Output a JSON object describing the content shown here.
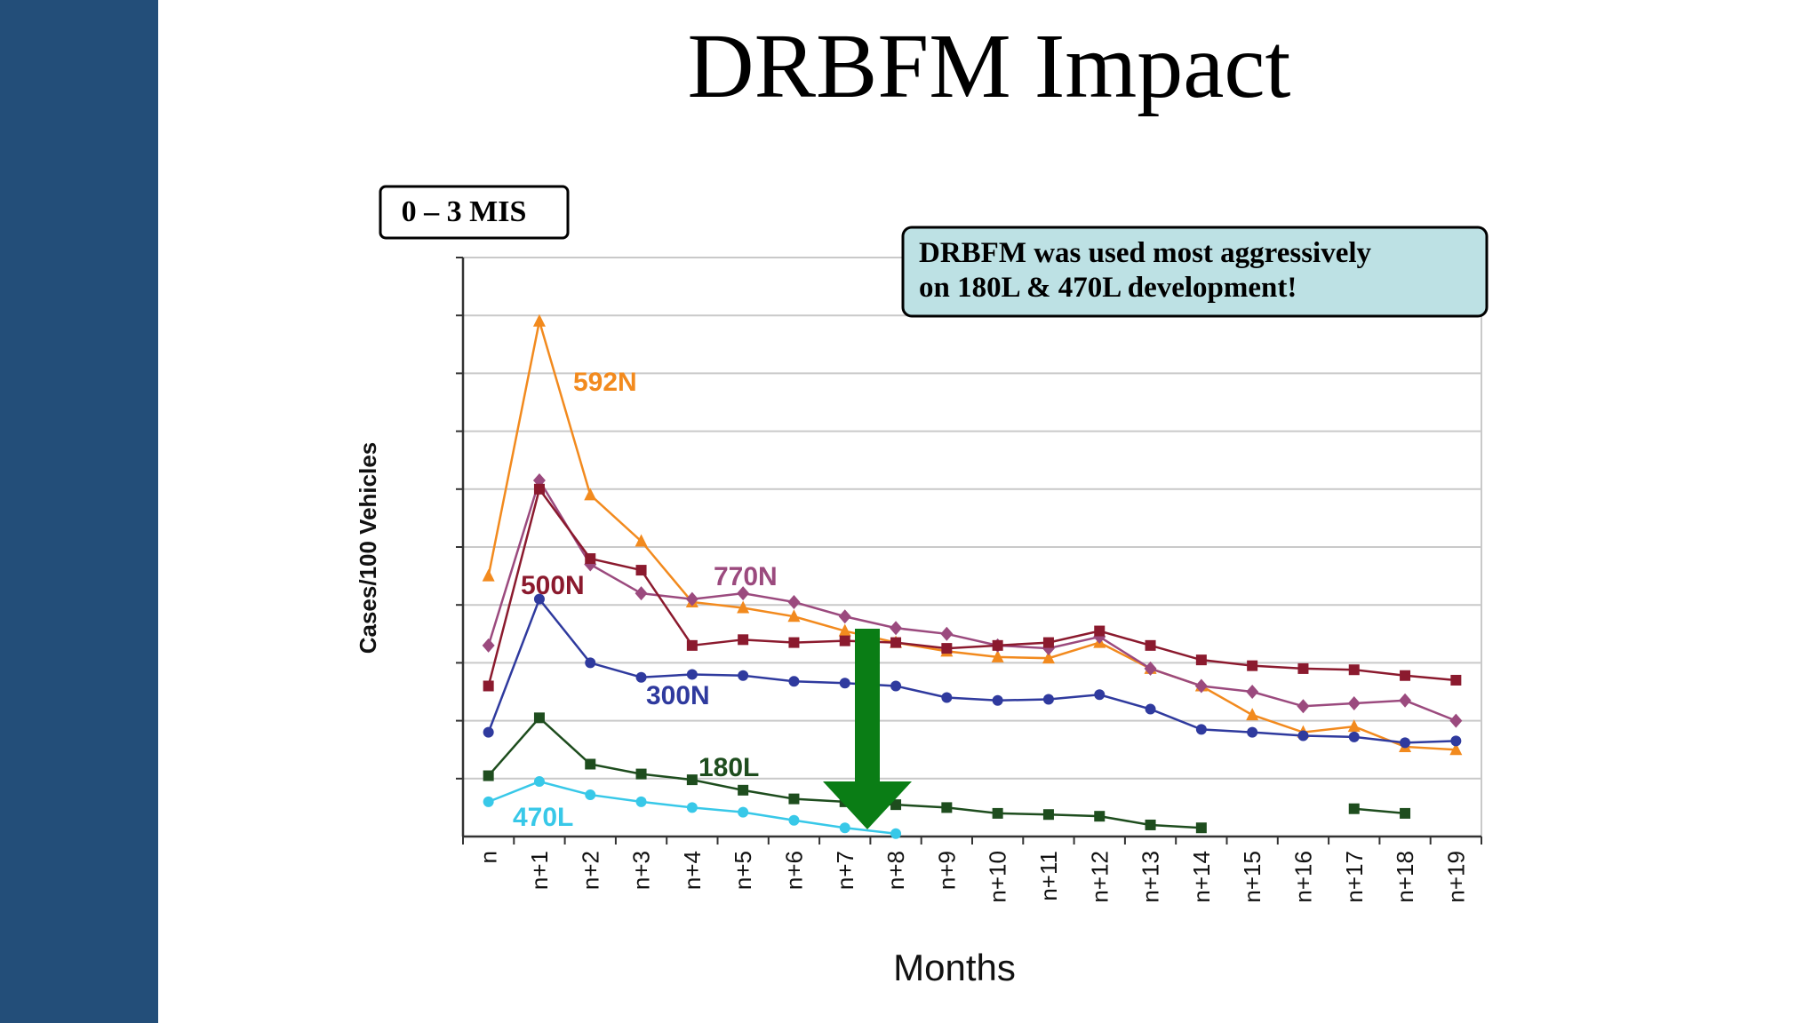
{
  "slide": {
    "title": "DRBFM Impact"
  },
  "chart_data": {
    "type": "line",
    "badge": "0 – 3 MIS",
    "callout": [
      "DRBFM was used most aggressively",
      "on 180L & 470L development!"
    ],
    "xlabel": "Months",
    "ylabel": "Cases/100 Vehicles",
    "x": [
      "n",
      "n+1",
      "n+2",
      "n+3",
      "n+4",
      "n+5",
      "n+6",
      "n+7",
      "n+8",
      "n+9",
      "n+10",
      "n+11",
      "n+12",
      "n+13",
      "n+14",
      "n+15",
      "n+16",
      "n+17",
      "n+18",
      "n+19"
    ],
    "ylim": [
      0,
      10
    ],
    "grid": true,
    "y_tick_labels_shown": false,
    "annotation": "down-arrow",
    "series": [
      {
        "name": "592N",
        "color": "#f28a1e",
        "marker": "triangle",
        "values": [
          4.5,
          8.9,
          5.9,
          5.1,
          4.05,
          3.95,
          3.8,
          3.55,
          3.35,
          3.2,
          3.1,
          3.08,
          3.35,
          2.9,
          2.6,
          2.1,
          1.8,
          1.9,
          1.55,
          1.5
        ]
      },
      {
        "name": "770N",
        "color": "#9b4a7e",
        "marker": "diamond",
        "values": [
          3.3,
          6.15,
          4.7,
          4.2,
          4.1,
          4.2,
          4.05,
          3.8,
          3.6,
          3.5,
          3.3,
          3.25,
          3.45,
          2.9,
          2.6,
          2.5,
          2.25,
          2.3,
          2.35,
          2.0
        ]
      },
      {
        "name": "500N",
        "color": "#8b1a2e",
        "marker": "square",
        "values": [
          2.6,
          6.0,
          4.8,
          4.6,
          3.3,
          3.4,
          3.35,
          3.38,
          3.35,
          3.25,
          3.3,
          3.35,
          3.55,
          3.3,
          3.05,
          2.95,
          2.9,
          2.88,
          2.78,
          2.7
        ]
      },
      {
        "name": "300N",
        "color": "#2f3a9e",
        "marker": "circle",
        "values": [
          1.8,
          4.1,
          3.0,
          2.75,
          2.8,
          2.78,
          2.68,
          2.65,
          2.6,
          2.4,
          2.35,
          2.37,
          2.45,
          2.2,
          1.85,
          1.8,
          1.74,
          1.72,
          1.62,
          1.65
        ]
      },
      {
        "name": "180L",
        "color": "#1e4d1e",
        "marker": "square",
        "values": [
          1.05,
          2.05,
          1.25,
          1.08,
          0.98,
          0.8,
          0.65,
          0.6,
          0.55,
          0.5,
          0.4,
          0.38,
          0.35,
          0.2,
          0.15,
          null,
          null,
          0.48,
          0.4,
          null
        ]
      },
      {
        "name": "470L",
        "color": "#38c8e8",
        "marker": "circle",
        "values": [
          0.6,
          0.95,
          0.72,
          0.6,
          0.5,
          0.42,
          0.28,
          0.15,
          0.05,
          null,
          null,
          null,
          null,
          null,
          null,
          null,
          null,
          null,
          null,
          null
        ]
      }
    ]
  }
}
